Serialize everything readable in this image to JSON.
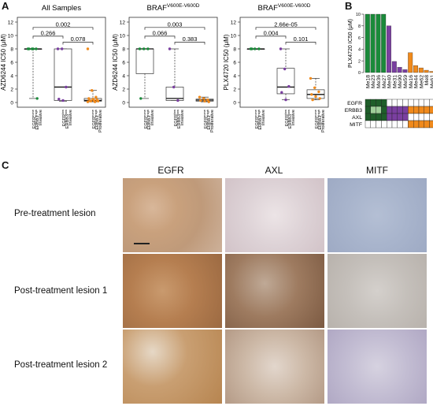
{
  "panel_A": {
    "letter": "A",
    "plots": [
      {
        "title": "All Samples",
        "title_sup": "",
        "ylabel": "AZD6244 IC50 (μM)",
        "yticks": [
          0,
          2,
          4,
          6,
          8,
          10,
          12
        ],
        "groups": [
          {
            "label": "EGFR",
            "label_sup": "none",
            "label2": "ERBB3",
            "label2_sup": "high",
            "label3": "Invasive"
          },
          {
            "label": "EGFR",
            "label_sup": "low",
            "label2": "ERBB3",
            "label2_sup": "low",
            "label3": "Invasive"
          },
          {
            "label": "EGFR",
            "label_sup": "none",
            "label2": "ERBB3",
            "label2_sup": "high",
            "label3": "Proliferative"
          }
        ],
        "comparisons": [
          {
            "label": "0.002",
            "from": 0,
            "to": 2
          },
          {
            "label": "0.266",
            "from": 0,
            "to": 1
          },
          {
            "label": "0.078",
            "from": 1,
            "to": 2
          }
        ]
      },
      {
        "title": "BRAF",
        "title_sup": "V600E-V600D",
        "ylabel": "AZD6244 IC50 (μM)",
        "yticks": [
          0,
          2,
          4,
          6,
          8,
          10,
          12
        ],
        "groups": [
          {
            "label": "EGFR",
            "label_sup": "none",
            "label2": "ERBB3",
            "label2_sup": "high",
            "label3": "Invasive"
          },
          {
            "label": "EGFR",
            "label_sup": "low",
            "label2": "ERBB3",
            "label2_sup": "low",
            "label3": "Invasive"
          },
          {
            "label": "EGFR",
            "label_sup": "none",
            "label2": "ERBB3",
            "label2_sup": "high",
            "label3": "Proliferative"
          }
        ],
        "comparisons": [
          {
            "label": "0.003",
            "from": 0,
            "to": 2
          },
          {
            "label": "0.066",
            "from": 0,
            "to": 1
          },
          {
            "label": "0.383",
            "from": 1,
            "to": 2
          }
        ]
      },
      {
        "title": "BRAF",
        "title_sup": "V600E-V600D",
        "ylabel": "PLX4720 IC50 (μM)",
        "yticks": [
          0,
          2,
          4,
          6,
          8,
          10,
          12
        ],
        "groups": [
          {
            "label": "EGFR",
            "label_sup": "none",
            "label2": "ERBB3",
            "label2_sup": "high",
            "label3": "Invasive"
          },
          {
            "label": "EGFR",
            "label_sup": "low",
            "label2": "ERBB3",
            "label2_sup": "low",
            "label3": "Invasive"
          },
          {
            "label": "EGFR",
            "label_sup": "none",
            "label2": "ERBB3",
            "label2_sup": "high",
            "label3": "Proliferative"
          }
        ],
        "comparisons": [
          {
            "label": "2.66e-05",
            "from": 0,
            "to": 2
          },
          {
            "label": "0.004",
            "from": 0,
            "to": 1
          },
          {
            "label": "0.101",
            "from": 1,
            "to": 2
          }
        ]
      }
    ]
  },
  "panel_B": {
    "letter": "B",
    "ylabel": "PLX4720 IC50 (μM)",
    "yticks": [
      0,
      2,
      4,
      6,
      8,
      10
    ],
    "samples": [
      "Me18",
      "Me23",
      "Me36",
      "Me27",
      "Me40",
      "Me31",
      "Me90",
      "Me59",
      "Me16",
      "Me44",
      "Me62",
      "Me8",
      "Me61"
    ],
    "heatmap_rows": [
      "EGFR",
      "ERBB3",
      "AXL",
      "MITF"
    ]
  },
  "panel_C": {
    "letter": "C",
    "columns": [
      "EGFR",
      "AXL",
      "MITF"
    ],
    "rows": [
      "Pre-treatment lesion",
      "Post-treatment lesion 1",
      "Post-treatment lesion 2"
    ]
  },
  "colors": {
    "green": "#1a8a3a",
    "purple": "#7a3fa0",
    "orange": "#f08a1c",
    "dark_green": "#1f5e2a",
    "light_green": "#9fcf9a"
  },
  "chart_data": [
    {
      "type": "scatter",
      "title": "All Samples",
      "ylabel": "AZD6244 IC50 (μM)",
      "ylim": [
        0,
        12
      ],
      "categories": [
        "EGFR none ERBB3 high Invasive",
        "EGFR low ERBB3 low Invasive",
        "EGFR none ERBB3 high Proliferative"
      ],
      "series": [
        {
          "name": "",
          "color": "#1a8a3a",
          "x": [
            0,
            0,
            0,
            0,
            0,
            0
          ],
          "y": [
            8,
            8,
            8,
            8,
            8,
            0.6
          ]
        },
        {
          "name": "",
          "color": "#7a3fa0",
          "x": [
            1,
            1,
            1,
            1,
            1
          ],
          "y": [
            8,
            8,
            2.3,
            0.5,
            0.3
          ]
        },
        {
          "name": "",
          "color": "#f08a1c",
          "x": [
            2,
            2,
            2,
            2,
            2,
            2,
            2,
            2,
            2,
            2,
            2,
            2
          ],
          "y": [
            8,
            1.8,
            0.8,
            0.6,
            0.5,
            0.4,
            0.3,
            0.3,
            0.2,
            0.2,
            0.1,
            0.1
          ]
        }
      ],
      "boxes": [
        {
          "q1": 8,
          "median": 8,
          "q3": 8,
          "min": 0.6,
          "max": 8
        },
        {
          "q1": 0.3,
          "median": 2.3,
          "q3": 8,
          "min": 0.2,
          "max": 8
        },
        {
          "q1": 0.2,
          "median": 0.3,
          "q3": 0.6,
          "min": 0.1,
          "max": 1.8
        }
      ]
    },
    {
      "type": "scatter",
      "title": "BRAF V600E-V600D",
      "ylabel": "AZD6244 IC50 (μM)",
      "ylim": [
        0,
        12
      ],
      "categories": [
        "EGFR none ERBB3 high Invasive",
        "EGFR low ERBB3 low Invasive",
        "EGFR none ERBB3 high Proliferative"
      ],
      "series": [
        {
          "name": "",
          "color": "#1a8a3a",
          "x": [
            0,
            0,
            0,
            0
          ],
          "y": [
            8,
            8,
            8,
            0.6
          ]
        },
        {
          "name": "",
          "color": "#7a3fa0",
          "x": [
            1,
            1,
            1
          ],
          "y": [
            8,
            2.3,
            0.3
          ]
        },
        {
          "name": "",
          "color": "#f08a1c",
          "x": [
            2,
            2,
            2,
            2,
            2,
            2
          ],
          "y": [
            0.8,
            0.6,
            0.4,
            0.3,
            0.2,
            0.1
          ]
        }
      ],
      "boxes": [
        {
          "q1": 4.3,
          "median": 8,
          "q3": 8,
          "min": 0.6,
          "max": 8
        },
        {
          "q1": 0.3,
          "median": 0.6,
          "q3": 2.3,
          "min": 0.3,
          "max": 8
        },
        {
          "q1": 0.2,
          "median": 0.35,
          "q3": 0.5,
          "min": 0.1,
          "max": 0.8
        }
      ]
    },
    {
      "type": "scatter",
      "title": "BRAF V600E-V600D",
      "ylabel": "PLX4720 IC50 (μM)",
      "ylim": [
        0,
        12
      ],
      "categories": [
        "EGFR none ERBB3 high Invasive",
        "EGFR low ERBB3 low Invasive",
        "EGFR none ERBB3 high Proliferative"
      ],
      "series": [
        {
          "name": "",
          "color": "#1a8a3a",
          "x": [
            0,
            0,
            0,
            0
          ],
          "y": [
            8,
            8,
            8,
            8
          ]
        },
        {
          "name": "",
          "color": "#7a3fa0",
          "x": [
            1,
            1,
            1,
            1,
            1
          ],
          "y": [
            8,
            5,
            2.4,
            1.5,
            0.4
          ]
        },
        {
          "name": "",
          "color": "#f08a1c",
          "x": [
            2,
            2,
            2,
            2,
            2,
            2,
            2
          ],
          "y": [
            3.6,
            2.2,
            1.6,
            1.2,
            0.9,
            0.6,
            0.4
          ]
        }
      ],
      "boxes": [
        {
          "q1": 8,
          "median": 8,
          "q3": 8,
          "min": 8,
          "max": 8
        },
        {
          "q1": 1.3,
          "median": 2.3,
          "q3": 5.1,
          "min": 0.4,
          "max": 8
        },
        {
          "q1": 0.6,
          "median": 1.2,
          "q3": 1.9,
          "min": 0.4,
          "max": 3.6
        }
      ]
    },
    {
      "type": "bar",
      "ylabel": "PLX4720 IC50 (μM)",
      "ylim": [
        0,
        10
      ],
      "categories": [
        "Me18",
        "Me23",
        "Me36",
        "Me27",
        "Me40",
        "Me31",
        "Me90",
        "Me59",
        "Me16",
        "Me44",
        "Me62",
        "Me8",
        "Me61"
      ],
      "values": [
        10,
        10,
        10,
        10,
        8,
        1.9,
        0.9,
        0.5,
        3.4,
        1.2,
        0.8,
        0.4,
        0.2
      ],
      "bar_colors": [
        "#1a8a3a",
        "#1a8a3a",
        "#1a8a3a",
        "#1a8a3a",
        "#7a3fa0",
        "#7a3fa0",
        "#7a3fa0",
        "#7a3fa0",
        "#f08a1c",
        "#f08a1c",
        "#f08a1c",
        "#f08a1c",
        "#f08a1c"
      ]
    },
    {
      "type": "heatmap",
      "rows": [
        "EGFR",
        "ERBB3",
        "AXL",
        "MITF"
      ],
      "columns": [
        "Me18",
        "Me23",
        "Me36",
        "Me27",
        "Me40",
        "Me31",
        "Me90",
        "Me59",
        "Me16",
        "Me44",
        "Me62",
        "Me8",
        "Me61"
      ],
      "cells": [
        [
          "#1f5e2a",
          "#1f5e2a",
          "#1f5e2a",
          "#1f5e2a",
          "#ffffff",
          "#ffffff",
          "#ffffff",
          "#ffffff",
          "#ffffff",
          "#ffffff",
          "#ffffff",
          "#ffffff",
          "#ffffff"
        ],
        [
          "#1f5e2a",
          "#9fcf9a",
          "#9fcf9a",
          "#1f5e2a",
          "#7a3fa0",
          "#7a3fa0",
          "#7a3fa0",
          "#7a3fa0",
          "#f08a1c",
          "#f08a1c",
          "#f08a1c",
          "#f08a1c",
          "#f08a1c"
        ],
        [
          "#1f5e2a",
          "#1f5e2a",
          "#1f5e2a",
          "#1f5e2a",
          "#7a3fa0",
          "#7a3fa0",
          "#7a3fa0",
          "#7a3fa0",
          "#ffffff",
          "#ffffff",
          "#ffffff",
          "#ffffff",
          "#ffffff"
        ],
        [
          "#ffffff",
          "#ffffff",
          "#ffffff",
          "#ffffff",
          "#ffffff",
          "#ffffff",
          "#ffffff",
          "#ffffff",
          "#f08a1c",
          "#f08a1c",
          "#f08a1c",
          "#f08a1c",
          "#f08a1c"
        ]
      ]
    }
  ]
}
